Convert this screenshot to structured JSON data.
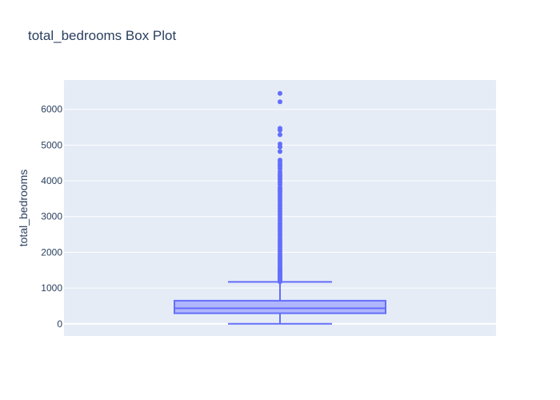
{
  "chart_data": {
    "type": "box",
    "title": "total_bedrooms Box Plot",
    "xlabel": "",
    "ylabel": "total_bedrooms",
    "ylim": [
      -340,
      6820
    ],
    "yticks": [
      0,
      1000,
      2000,
      3000,
      4000,
      5000,
      6000
    ],
    "grid": true,
    "legend": "none",
    "colors": {
      "plot_bg": "#e5ecf6",
      "grid": "#ffffff",
      "box_line": "#636efa",
      "box_fill": "#aab0fc",
      "text": "#2a3f5f"
    },
    "series": [
      {
        "stats": {
          "lowerfence": 1,
          "q1": 296,
          "median": 435,
          "q3": 647,
          "upperfence": 1173
        },
        "outliers": [
          1180,
          1200,
          1220,
          1240,
          1260,
          1290,
          1320,
          1350,
          1380,
          1410,
          1440,
          1480,
          1520,
          1560,
          1600,
          1650,
          1700,
          1750,
          1800,
          1850,
          1900,
          1960,
          2020,
          2080,
          2140,
          2200,
          2260,
          2320,
          2380,
          2450,
          2520,
          2590,
          2660,
          2730,
          2800,
          2870,
          2940,
          3010,
          3080,
          3150,
          3220,
          3290,
          3360,
          3430,
          3500,
          3570,
          3640,
          3700,
          3760,
          3820,
          3900,
          3960,
          4020,
          4080,
          4130,
          4180,
          4250,
          4340,
          4400,
          4450,
          4520,
          4580,
          4820,
          4950,
          5030,
          5290,
          5420,
          5470,
          6210,
          6445
        ]
      }
    ]
  }
}
